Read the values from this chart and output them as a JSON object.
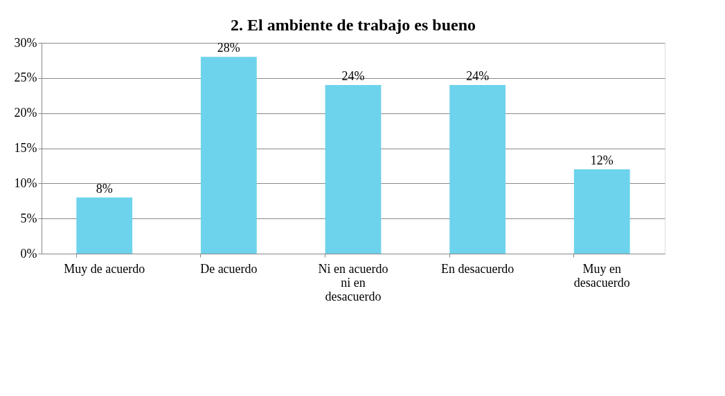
{
  "chart_data": {
    "type": "bar",
    "title": "2. El ambiente de trabajo es bueno",
    "categories": [
      "Muy de acuerdo",
      "De acuerdo",
      "Ni en acuerdo ni en desacuerdo",
      "En desacuerdo",
      "Muy en desacuerdo"
    ],
    "values": [
      8,
      28,
      24,
      24,
      12
    ],
    "value_labels": [
      "8%",
      "28%",
      "24%",
      "24%",
      "12%"
    ],
    "color": "#6dd3ec",
    "ylim": [
      0,
      30
    ],
    "yticks": [
      {
        "value": 0,
        "label": "0%"
      },
      {
        "value": 5,
        "label": "5%"
      },
      {
        "value": 10,
        "label": "10%"
      },
      {
        "value": 15,
        "label": "15%"
      },
      {
        "value": 20,
        "label": "20%"
      },
      {
        "value": 25,
        "label": "25%"
      },
      {
        "value": 30,
        "label": "30%"
      }
    ],
    "grid": "y"
  }
}
